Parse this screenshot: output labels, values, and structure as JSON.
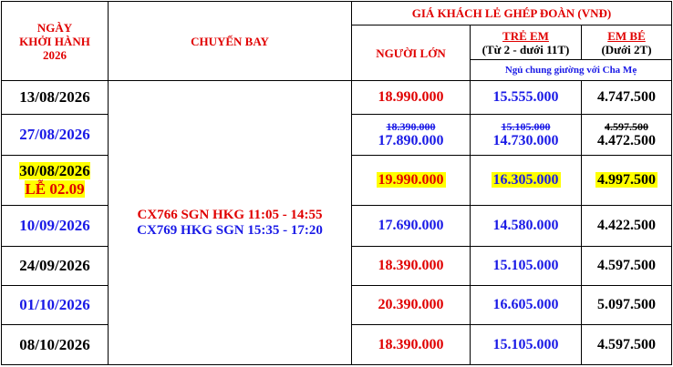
{
  "header": {
    "date_lines": [
      "NGÀY",
      "KHỞI HÀNH",
      "2026"
    ],
    "flight": "CHUYẾN BAY",
    "price_group": "GIÁ KHÁCH LẺ GHÉP ĐOÀN (VNĐ)",
    "adult": "NGƯỜI LỚN",
    "child": "TRẺ EM",
    "child_note": "(Từ 2 - dưới 11T)",
    "infant": "EM BÉ",
    "infant_note": "(Dưới 2T)",
    "bed_note": "Ngủ chung giường với Cha Mẹ"
  },
  "flights": [
    {
      "text": "CX766 SGN HKG 11:05 - 14:55",
      "color": "#e00000"
    },
    {
      "text": "CX769 HKG SGN 15:35 - 17:20",
      "color": "#1a1ae6"
    }
  ],
  "rows": [
    {
      "date": "13/08/2026",
      "date_color": "#000",
      "adult": "18.990.000",
      "adult_color": "#e00000",
      "child": "15.555.000",
      "infant": "4.747.500"
    },
    {
      "date": "27/08/2026",
      "date_color": "#1a1ae6",
      "adult_old": "18.390.000",
      "adult": "17.890.000",
      "adult_color": "#1a1ae6",
      "child_old": "15.105.000",
      "child": "14.730.000",
      "infant_old": "4.597.500",
      "infant": "4.472.500"
    },
    {
      "date": "30/08/2026",
      "note": "LỄ 02.09",
      "date_color": "#000",
      "highlight": "#ffff00",
      "adult": "19.990.000",
      "adult_color": "#e00000",
      "child": "16.305.000",
      "infant": "4.997.500"
    },
    {
      "date": "10/09/2026",
      "date_color": "#1a1ae6",
      "adult": "17.690.000",
      "adult_color": "#1a1ae6",
      "child": "14.580.000",
      "infant": "4.422.500"
    },
    {
      "date": "24/09/2026",
      "date_color": "#000",
      "adult": "18.390.000",
      "adult_color": "#e00000",
      "child": "15.105.000",
      "infant": "4.597.500"
    },
    {
      "date": "01/10/2026",
      "date_color": "#1a1ae6",
      "adult": "20.390.000",
      "adult_color": "#e00000",
      "child": "16.605.000",
      "infant": "5.097.500"
    },
    {
      "date": "08/10/2026",
      "date_color": "#000",
      "adult": "18.390.000",
      "adult_color": "#e00000",
      "child": "15.105.000",
      "infant": "4.597.500"
    }
  ]
}
